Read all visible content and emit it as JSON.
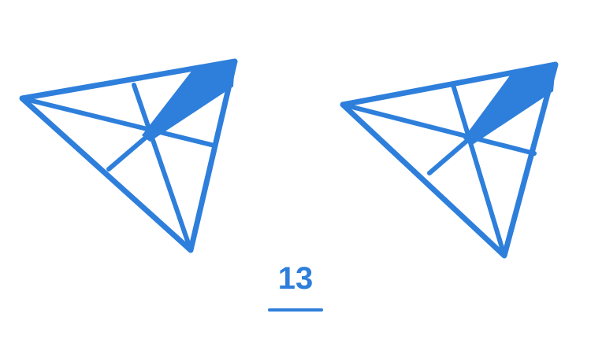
{
  "figure": {
    "caption": "13",
    "colors": {
      "ink": "#2e7fdb",
      "background": "#ffffff"
    },
    "triangles": [
      {
        "name": "left",
        "shaded_edge": "top-right"
      },
      {
        "name": "right",
        "shaded_edge": "top-right"
      }
    ]
  }
}
